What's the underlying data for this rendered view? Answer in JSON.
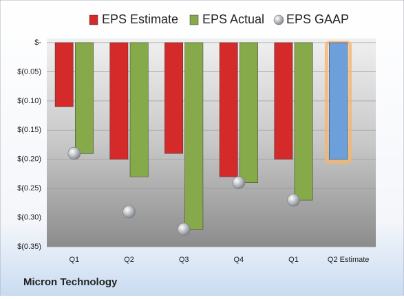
{
  "chart_data": {
    "type": "bar",
    "title": "Micron Technology",
    "categories": [
      "Q1",
      "Q2",
      "Q3",
      "Q4",
      "Q1",
      "Q2 Estimate"
    ],
    "series": [
      {
        "name": "EPS Estimate",
        "color": "#d42a2a",
        "colors": [
          "#d42a2a",
          "#d42a2a",
          "#d42a2a",
          "#d42a2a",
          "#d42a2a",
          "#6d9fda"
        ],
        "values": [
          -0.11,
          -0.2,
          -0.19,
          -0.23,
          -0.2,
          -0.2
        ]
      },
      {
        "name": "EPS Actual",
        "color": "#86a94a",
        "values": [
          -0.19,
          -0.23,
          -0.32,
          -0.24,
          -0.27,
          null
        ]
      },
      {
        "name": "EPS GAAP",
        "color": "#a9aeb4",
        "marker": "circle",
        "values": [
          -0.19,
          -0.29,
          -0.32,
          -0.24,
          -0.27,
          null
        ]
      }
    ],
    "ylim": [
      -0.35,
      0
    ],
    "yticks": [
      {
        "value": 0,
        "label": "$-"
      },
      {
        "value": -0.05,
        "label": "$(0.05)"
      },
      {
        "value": -0.1,
        "label": "$(0.10)"
      },
      {
        "value": -0.15,
        "label": "$(0.15)"
      },
      {
        "value": -0.2,
        "label": "$(0.20)"
      },
      {
        "value": -0.25,
        "label": "$(0.25)"
      },
      {
        "value": -0.3,
        "label": "$(0.30)"
      },
      {
        "value": -0.35,
        "label": "$(0.35)"
      }
    ],
    "grid": true,
    "legend": "top"
  }
}
